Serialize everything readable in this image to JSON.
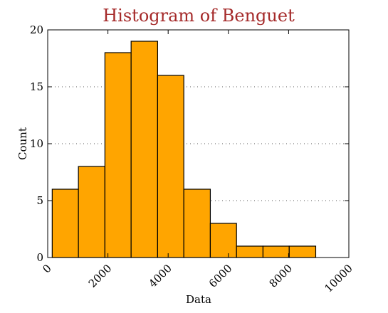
{
  "colors": {
    "title": "#a52a2a",
    "bar_fill": "#ffa500",
    "bar_stroke": "#000000",
    "grid": "#555555"
  },
  "chart_data": {
    "type": "bar",
    "title": "Histogram of Benguet",
    "xlabel": "Data",
    "ylabel": "Count",
    "xlim": [
      0,
      10000
    ],
    "ylim": [
      0,
      20
    ],
    "grid": "horizontal dotted",
    "x_ticks": [
      0,
      2000,
      4000,
      6000,
      8000,
      10000
    ],
    "x_tick_labels": [
      "0",
      "2000",
      "4000",
      "6000",
      "8000",
      "10000"
    ],
    "y_ticks": [
      0,
      5,
      10,
      15,
      20
    ],
    "y_tick_labels": [
      "0",
      "5",
      "10",
      "15",
      "20"
    ],
    "bins": [
      {
        "start": 150,
        "end": 1020,
        "count": 6
      },
      {
        "start": 1020,
        "end": 1900,
        "count": 8
      },
      {
        "start": 1900,
        "end": 2770,
        "count": 18
      },
      {
        "start": 2770,
        "end": 3650,
        "count": 19
      },
      {
        "start": 3650,
        "end": 4520,
        "count": 16
      },
      {
        "start": 4520,
        "end": 5400,
        "count": 6
      },
      {
        "start": 5400,
        "end": 6270,
        "count": 3
      },
      {
        "start": 6270,
        "end": 7150,
        "count": 1
      },
      {
        "start": 7150,
        "end": 8020,
        "count": 1
      },
      {
        "start": 8020,
        "end": 8900,
        "count": 1
      }
    ]
  }
}
